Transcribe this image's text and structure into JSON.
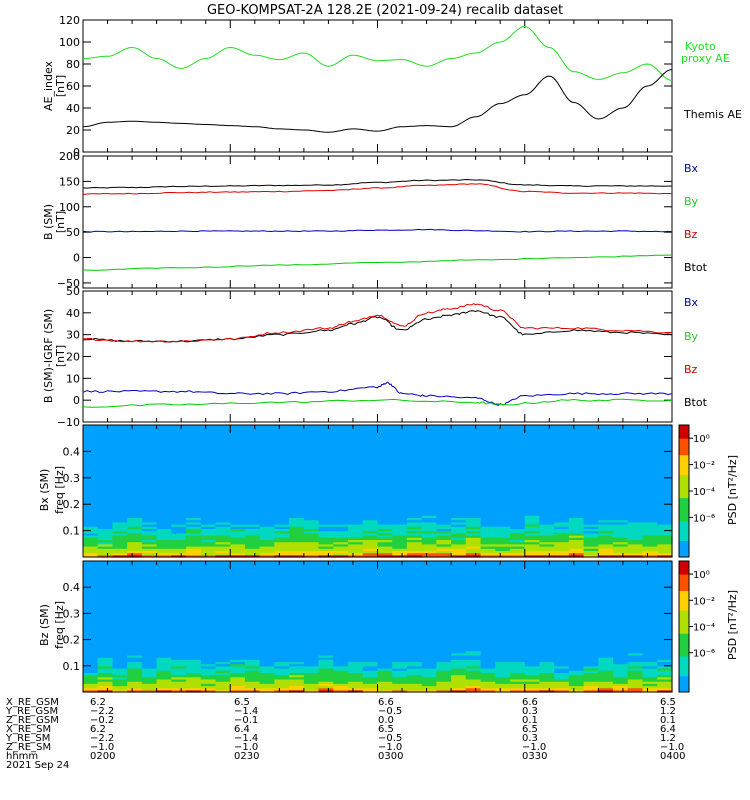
{
  "figure": {
    "title": "GEO-KOMPSAT-2A 128.2E (2021-09-24) recalib dataset"
  },
  "colors": {
    "black": "#000000",
    "red": "#dd0000",
    "green": "#00cc00",
    "blue": "#0000bb",
    "kyoto": "#22dd22",
    "bx_label": "#0000aa",
    "by_label": "#22cc22",
    "bz_label": "#cc0000"
  },
  "chart_data": [
    {
      "type": "line",
      "panel": "AE index",
      "ylabel": "AE_index",
      "yunit": "[nT]",
      "ylim": [
        0,
        120
      ],
      "yticks": [
        0,
        20,
        40,
        60,
        80,
        100,
        120
      ],
      "xlim": [
        "02:00",
        "04:00"
      ],
      "series": [
        {
          "name": "Kyoto proxy AE",
          "color": "kyoto",
          "x": [
            "02:00",
            "02:05",
            "02:10",
            "02:15",
            "02:20",
            "02:25",
            "02:30",
            "02:35",
            "02:40",
            "02:45",
            "02:50",
            "02:55",
            "03:00",
            "03:05",
            "03:10",
            "03:15",
            "03:20",
            "03:25",
            "03:30",
            "03:35",
            "03:40",
            "03:45",
            "03:50",
            "03:55",
            "04:00"
          ],
          "y": [
            85,
            87,
            95,
            85,
            76,
            85,
            95,
            88,
            84,
            90,
            78,
            88,
            83,
            84,
            78,
            85,
            90,
            100,
            114,
            95,
            73,
            66,
            72,
            80,
            65
          ]
        },
        {
          "name": "Themis AE",
          "color": "black",
          "x": [
            "02:00",
            "02:05",
            "02:10",
            "02:15",
            "02:20",
            "02:25",
            "02:30",
            "02:35",
            "02:40",
            "02:45",
            "02:50",
            "02:55",
            "03:00",
            "03:05",
            "03:10",
            "03:15",
            "03:20",
            "03:25",
            "03:30",
            "03:35",
            "03:40",
            "03:45",
            "03:50",
            "03:55",
            "04:00"
          ],
          "y": [
            23,
            27,
            28,
            27,
            26,
            25,
            24,
            23,
            21,
            20,
            18,
            21,
            19,
            23,
            24,
            23,
            32,
            44,
            52,
            69,
            45,
            30,
            40,
            60,
            75
          ]
        }
      ]
    },
    {
      "type": "line",
      "panel": "B (SM)",
      "ylabel": "B (SM)",
      "yunit": "[nT]",
      "ylim": [
        -60,
        200
      ],
      "yticks": [
        -50,
        0,
        50,
        100,
        150,
        200
      ],
      "xlim": [
        "02:00",
        "04:00"
      ],
      "series": [
        {
          "name": "Bx",
          "color": "black",
          "x": [
            "02:00",
            "02:10",
            "02:20",
            "02:30",
            "02:40",
            "02:50",
            "03:00",
            "03:10",
            "03:20",
            "03:30",
            "03:40",
            "03:50",
            "04:00"
          ],
          "y": [
            137,
            138,
            140,
            141,
            142,
            143,
            148,
            152,
            153,
            143,
            141,
            141,
            141
          ]
        },
        {
          "name": "By",
          "color": "red",
          "x": [
            "02:00",
            "02:10",
            "02:20",
            "02:30",
            "02:40",
            "02:50",
            "03:00",
            "03:10",
            "03:20",
            "03:30",
            "03:40",
            "03:50",
            "04:00"
          ],
          "y": [
            125,
            126,
            128,
            129,
            130,
            132,
            137,
            142,
            145,
            130,
            127,
            127,
            126
          ]
        },
        {
          "name": "Bz",
          "color": "blue",
          "x": [
            "02:00",
            "02:10",
            "02:20",
            "02:30",
            "02:40",
            "02:50",
            "03:00",
            "03:10",
            "03:20",
            "03:30",
            "03:40",
            "03:50",
            "04:00"
          ],
          "y": [
            51,
            51,
            52,
            52,
            52,
            52,
            54,
            55,
            53,
            51,
            52,
            52,
            51
          ]
        },
        {
          "name": "Btot",
          "color": "green",
          "x": [
            "02:00",
            "02:20",
            "02:40",
            "03:00",
            "03:20",
            "03:40",
            "04:00"
          ],
          "y": [
            -25,
            -20,
            -15,
            -10,
            -5,
            0,
            5
          ]
        }
      ]
    },
    {
      "type": "line",
      "panel": "B (SM)-IGRF (SM)",
      "ylabel": "B (SM)-IGRF (SM)",
      "yunit": "[nT]",
      "ylim": [
        -10,
        50
      ],
      "yticks": [
        -10,
        0,
        10,
        20,
        30,
        40,
        50
      ],
      "xlim": [
        "02:00",
        "04:00"
      ],
      "series": [
        {
          "name": "Bx",
          "color": "black",
          "x": [
            "02:00",
            "02:10",
            "02:20",
            "02:30",
            "02:40",
            "02:50",
            "02:55",
            "03:00",
            "03:05",
            "03:10",
            "03:15",
            "03:20",
            "03:25",
            "03:30",
            "03:40",
            "03:50",
            "04:00"
          ],
          "y": [
            28,
            27,
            27,
            28,
            30,
            32,
            35,
            38,
            32,
            37,
            39,
            41,
            38,
            30,
            32,
            31,
            30
          ]
        },
        {
          "name": "By",
          "color": "red",
          "x": [
            "02:00",
            "02:10",
            "02:20",
            "02:30",
            "02:40",
            "02:50",
            "02:55",
            "03:00",
            "03:05",
            "03:10",
            "03:15",
            "03:20",
            "03:25",
            "03:30",
            "03:40",
            "03:50",
            "04:00"
          ],
          "y": [
            28,
            27,
            27,
            28,
            31,
            33,
            36,
            39,
            34,
            40,
            42,
            44,
            41,
            33,
            33,
            32,
            31
          ]
        },
        {
          "name": "Bz",
          "color": "blue",
          "x": [
            "02:00",
            "02:10",
            "02:20",
            "02:30",
            "02:40",
            "02:50",
            "03:00",
            "03:02",
            "03:05",
            "03:10",
            "03:20",
            "03:25",
            "03:30",
            "03:40",
            "03:50",
            "04:00"
          ],
          "y": [
            4,
            4,
            4,
            3,
            3,
            4,
            6,
            8,
            3,
            2,
            1,
            -2,
            2,
            3,
            3,
            3
          ]
        },
        {
          "name": "Btot",
          "color": "green",
          "x": [
            "02:00",
            "02:20",
            "02:40",
            "03:00",
            "03:20",
            "03:25",
            "03:40",
            "04:00"
          ],
          "y": [
            -3,
            -2,
            -1,
            0,
            -1,
            -2,
            0,
            0
          ]
        }
      ]
    },
    {
      "type": "heatmap",
      "panel": "Bx (SM)",
      "ylabel": "Bx (SM)",
      "ylabel2": "freq [Hz]",
      "ylim": [
        0,
        0.5
      ],
      "yticks": [
        0.1,
        0.2,
        0.3,
        0.4
      ],
      "xlim": [
        "02:00",
        "04:00"
      ],
      "colorbar": {
        "label": "PSD [nT²/Hz]",
        "range_log10": [
          -9,
          1
        ],
        "ticks": [
          "10⁰",
          "10⁻²",
          "10⁻⁴",
          "10⁻⁶"
        ]
      },
      "description_values": "PSD highest (red, ~10^0) below 0.05 Hz, decreasing to ~10^-4 (cyan/blue) above 0.3 Hz"
    },
    {
      "type": "heatmap",
      "panel": "Bz (SM)",
      "ylabel": "Bz (SM)",
      "ylabel2": "freq [Hz]",
      "ylim": [
        0,
        0.5
      ],
      "yticks": [
        0.1,
        0.2,
        0.3,
        0.4
      ],
      "xlim": [
        "02:00",
        "04:00"
      ],
      "colorbar": {
        "label": "PSD [nT²/Hz]",
        "range_log10": [
          -9,
          1
        ],
        "ticks": [
          "10⁰",
          "10⁻²",
          "10⁻⁴",
          "10⁻⁶"
        ]
      },
      "description_values": "PSD highest (red, ~10^0) below 0.05 Hz, decreasing to ~10^-4 (cyan/blue) above 0.3 Hz"
    }
  ],
  "ephemeris": {
    "rows": [
      {
        "label": "X_RE_GSM",
        "values": [
          "6.2",
          "6.5",
          "6.6",
          "6.6",
          "6.5"
        ]
      },
      {
        "label": "Y_RE_GSM",
        "values": [
          "−2.2",
          "−1.4",
          "−0.5",
          "0.3",
          "1.2"
        ]
      },
      {
        "label": "Z_RE_GSM",
        "values": [
          "−0.2",
          "−0.1",
          "0.0",
          "0.1",
          "0.1"
        ]
      },
      {
        "label": "X_RE_SM",
        "values": [
          "6.2",
          "6.4",
          "6.5",
          "6.5",
          "6.4"
        ]
      },
      {
        "label": "Y_RE_SM",
        "values": [
          "−2.2",
          "−1.4",
          "−0.5",
          "0.3",
          "1.2"
        ]
      },
      {
        "label": "Z_RE_SM",
        "values": [
          "−1.0",
          "−1.0",
          "−1.0",
          "−1.0",
          "−1.0"
        ]
      },
      {
        "label": "hhmm",
        "values": [
          "0200",
          "0230",
          "0300",
          "0330",
          "0400"
        ]
      }
    ],
    "date": "2021 Sep 24"
  }
}
